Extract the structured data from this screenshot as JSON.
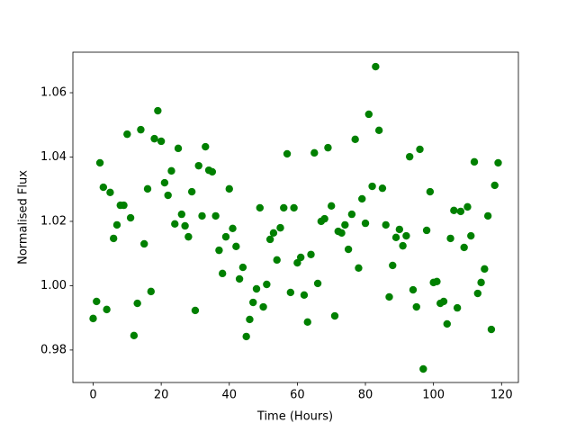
{
  "chart_data": {
    "type": "scatter",
    "xlabel": "Time (Hours)",
    "ylabel": "Normalised Flux",
    "color": "#008000",
    "x": [
      0,
      1,
      2,
      3,
      4,
      5,
      6,
      7,
      8,
      9,
      10,
      11,
      12,
      13,
      14,
      15,
      16,
      17,
      18,
      19,
      20,
      21,
      22,
      23,
      24,
      25,
      26,
      27,
      28,
      29,
      30,
      31,
      32,
      33,
      34,
      35,
      36,
      37,
      38,
      39,
      40,
      41,
      42,
      43,
      44,
      45,
      46,
      47,
      48,
      49,
      50,
      51,
      52,
      53,
      54,
      55,
      56,
      57,
      58,
      59,
      60,
      61,
      62,
      63,
      64,
      65,
      66,
      67,
      68,
      69,
      70,
      71,
      72,
      73,
      74,
      75,
      76,
      77,
      78,
      79,
      80,
      81,
      82,
      83,
      84,
      85,
      86,
      87,
      88,
      89,
      90,
      91,
      92,
      93,
      94,
      95,
      96,
      97,
      98,
      99,
      100,
      101,
      102,
      103,
      104,
      105,
      106,
      107,
      108,
      109,
      110,
      111,
      112,
      113,
      114,
      115,
      116,
      117,
      118,
      119
    ],
    "values": [
      0.9898,
      0.9951,
      1.0382,
      1.0306,
      0.9926,
      1.029,
      1.0147,
      1.0189,
      1.025,
      1.025,
      1.0471,
      1.0211,
      0.9845,
      0.9945,
      1.0485,
      1.013,
      1.0301,
      0.9982,
      1.0457,
      1.0544,
      1.0449,
      1.032,
      1.0281,
      1.0357,
      1.0192,
      1.0427,
      1.0222,
      1.0186,
      1.0152,
      1.0292,
      0.9923,
      1.0373,
      1.0217,
      1.0432,
      1.0359,
      1.0354,
      1.0217,
      1.011,
      1.0038,
      1.0152,
      1.0301,
      1.0178,
      1.0122,
      1.0021,
      1.0057,
      0.9842,
      0.9895,
      0.9948,
      0.999,
      1.0242,
      0.9934,
      1.0004,
      1.0144,
      1.0164,
      1.008,
      1.018,
      1.0242,
      1.041,
      0.9979,
      1.0242,
      1.0071,
      1.0088,
      0.9971,
      0.9887,
      1.0097,
      1.0413,
      1.0007,
      1.02,
      1.0208,
      1.0429,
      1.0248,
      0.9906,
      1.0169,
      1.0164,
      1.0189,
      1.0113,
      1.0222,
      1.0455,
      1.0055,
      1.027,
      1.0194,
      1.0533,
      1.0309,
      1.0681,
      1.0483,
      1.0303,
      1.0189,
      0.9965,
      1.0063,
      1.015,
      1.0175,
      1.0124,
      1.0155,
      1.0401,
      0.9987,
      0.9934,
      1.0424,
      0.9741,
      1.0172,
      1.0292,
      1.001,
      1.0013,
      0.9945,
      0.9951,
      0.9881,
      1.0147,
      1.0234,
      0.9931,
      1.0231,
      1.0119,
      1.0245,
      1.0155,
      1.0385,
      0.9976,
      1.001,
      1.0052,
      1.0217,
      0.9864,
      1.0312,
      1.0382
    ],
    "xlim": [
      -5.95,
      124.95
    ],
    "ylim": [
      0.9699,
      1.0726
    ],
    "xticks": [
      0,
      20,
      40,
      60,
      80,
      100,
      120
    ],
    "yticks": [
      0.98,
      {
        "value": 1.0,
        "label": "1.00"
      },
      1.02,
      1.04,
      1.06
    ]
  }
}
